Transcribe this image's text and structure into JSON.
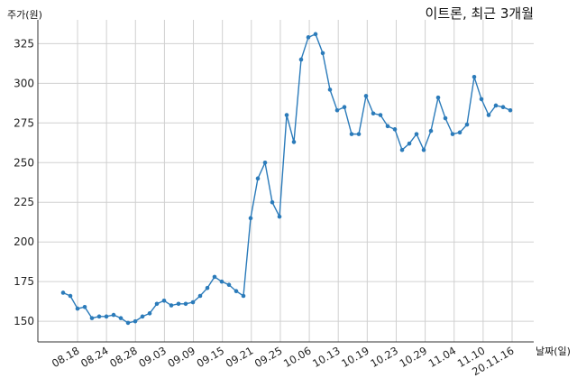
{
  "chart_data": {
    "type": "line",
    "title": "이트론, 최근 3개월",
    "xlabel": "날짜(일)",
    "ylabel": "주가(원)",
    "ylim": [
      137,
      340
    ],
    "yticks": [
      150,
      175,
      200,
      225,
      250,
      275,
      300,
      325
    ],
    "grid": true,
    "series_color": "#2b7bba",
    "x_tick_labels": [
      "08.18",
      "08.24",
      "08.28",
      "09.03",
      "09.09",
      "09.15",
      "09.21",
      "09.25",
      "10.06",
      "10.13",
      "10.19",
      "10.23",
      "10.29",
      "11.04",
      "11.10",
      "20.11.16"
    ],
    "series": [
      {
        "values": [
          168,
          166,
          158,
          159,
          152,
          153,
          153,
          154,
          152,
          149,
          150,
          153,
          155,
          161,
          163,
          160,
          161,
          161,
          162,
          166,
          171,
          178,
          175,
          173,
          169,
          166,
          215,
          240,
          250,
          225,
          216,
          280,
          263,
          315,
          329,
          331,
          319,
          296,
          283,
          285,
          268,
          268,
          292,
          281,
          280,
          273,
          271,
          258,
          262,
          268,
          258,
          270,
          291,
          278,
          268,
          269,
          274,
          304,
          290,
          280,
          286,
          285,
          283
        ]
      }
    ]
  }
}
